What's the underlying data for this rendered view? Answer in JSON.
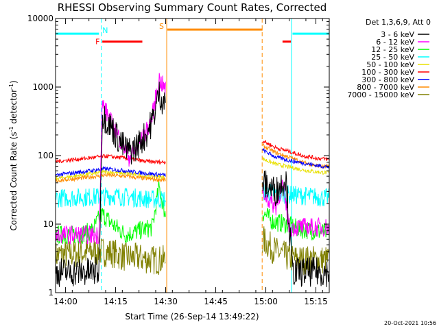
{
  "chart_data": {
    "type": "line",
    "title": "RHESSI Observing Summary Count Rates, Corrected",
    "xlabel": "Start Time (26-Sep-14 13:49:22)",
    "ylabel_main": "Corrected Count Rate (s",
    "ylabel_sup": "-1",
    "ylabel_tail": " detector",
    "ylabel_sup2": "-1",
    "ylabel_end": ")",
    "y_scale": "log",
    "ylim": [
      1,
      10000
    ],
    "xlim_minutes": [
      -3,
      79
    ],
    "x_ticks": [
      {
        "m": 0,
        "label": "14:00"
      },
      {
        "m": 15,
        "label": "14:15"
      },
      {
        "m": 30,
        "label": "14:30"
      },
      {
        "m": 45,
        "label": "14:45"
      },
      {
        "m": 60,
        "label": "15:00"
      },
      {
        "m": 75,
        "label": "15:15"
      }
    ],
    "y_ticks": [
      {
        "v": 1,
        "label": "1"
      },
      {
        "v": 10,
        "label": "10"
      },
      {
        "v": 100,
        "label": "100"
      },
      {
        "v": 1000,
        "label": "1000"
      },
      {
        "v": 10000,
        "label": "10000"
      }
    ],
    "legend_header": "Det 1,3,6,9, Att 0",
    "series": [
      {
        "name": "3 - 6 keV",
        "color": "#000000",
        "noisy": true,
        "seg1": [
          [
            -3,
            2
          ],
          [
            10,
            2
          ],
          [
            11,
            400
          ],
          [
            14,
            250
          ],
          [
            17,
            140
          ],
          [
            19,
            115
          ],
          [
            21,
            130
          ],
          [
            24,
            200
          ],
          [
            26,
            320
          ],
          [
            28,
            800
          ],
          [
            29,
            650
          ],
          [
            30,
            560
          ]
        ],
        "seg2": [
          [
            59,
            40
          ],
          [
            61,
            35
          ],
          [
            63,
            30
          ],
          [
            66,
            48
          ],
          [
            68,
            2
          ],
          [
            79,
            2
          ]
        ]
      },
      {
        "name": "6 - 12 keV",
        "color": "#ff00ff",
        "noisy": true,
        "seg1": [
          [
            -3,
            7
          ],
          [
            10,
            7
          ],
          [
            11,
            580
          ],
          [
            14,
            280
          ],
          [
            17,
            150
          ],
          [
            19,
            95
          ],
          [
            21,
            120
          ],
          [
            24,
            210
          ],
          [
            26,
            380
          ],
          [
            28,
            1300
          ],
          [
            30,
            900
          ]
        ],
        "seg2": [
          [
            59,
            30
          ],
          [
            61,
            22
          ],
          [
            63,
            18
          ],
          [
            65,
            38
          ],
          [
            67,
            9
          ],
          [
            79,
            9
          ]
        ]
      },
      {
        "name": "12 - 25 keV",
        "color": "#00ff00",
        "noisy": true,
        "seg1": [
          [
            -3,
            7
          ],
          [
            4,
            7
          ],
          [
            8,
            8
          ],
          [
            10,
            12
          ],
          [
            11,
            14
          ],
          [
            14,
            10
          ],
          [
            18,
            7
          ],
          [
            22,
            8
          ],
          [
            26,
            9
          ],
          [
            28,
            35
          ],
          [
            30,
            13
          ]
        ],
        "seg2": [
          [
            59,
            15
          ],
          [
            62,
            11
          ],
          [
            66,
            10
          ],
          [
            70,
            8.5
          ],
          [
            74,
            8
          ],
          [
            79,
            7.5
          ]
        ]
      },
      {
        "name": "25 - 50 keV",
        "color": "#00ffff",
        "noisy": true,
        "seg1": [
          [
            -3,
            24
          ],
          [
            10,
            25
          ],
          [
            14,
            26
          ],
          [
            18,
            25
          ],
          [
            22,
            24
          ],
          [
            26,
            23
          ],
          [
            30,
            23
          ]
        ],
        "seg2": [
          [
            59,
            30
          ],
          [
            63,
            28
          ],
          [
            67,
            27
          ],
          [
            71,
            26
          ],
          [
            75,
            25
          ],
          [
            79,
            24
          ]
        ]
      },
      {
        "name": "50 - 100 keV",
        "color": "#e8e000",
        "noisy": false,
        "seg1": [
          [
            -3,
            46
          ],
          [
            5,
            52
          ],
          [
            12,
            58
          ],
          [
            18,
            55
          ],
          [
            24,
            50
          ],
          [
            30,
            48
          ]
        ],
        "seg2": [
          [
            59,
            90
          ],
          [
            63,
            75
          ],
          [
            67,
            68
          ],
          [
            71,
            62
          ],
          [
            75,
            58
          ],
          [
            79,
            56
          ]
        ]
      },
      {
        "name": "100 - 300 keV",
        "color": "#ff0000",
        "noisy": false,
        "seg1": [
          [
            -3,
            82
          ],
          [
            5,
            90
          ],
          [
            12,
            98
          ],
          [
            18,
            92
          ],
          [
            24,
            82
          ],
          [
            30,
            80
          ]
        ],
        "seg2": [
          [
            59,
            165
          ],
          [
            63,
            130
          ],
          [
            67,
            115
          ],
          [
            71,
            100
          ],
          [
            75,
            92
          ],
          [
            79,
            88
          ]
        ]
      },
      {
        "name": "300 - 800 keV",
        "color": "#0000ff",
        "noisy": false,
        "seg1": [
          [
            -3,
            52
          ],
          [
            5,
            58
          ],
          [
            12,
            64
          ],
          [
            18,
            60
          ],
          [
            24,
            55
          ],
          [
            30,
            52
          ]
        ],
        "seg2": [
          [
            59,
            120
          ],
          [
            63,
            95
          ],
          [
            67,
            85
          ],
          [
            71,
            78
          ],
          [
            75,
            72
          ],
          [
            79,
            68
          ]
        ]
      },
      {
        "name": "800 - 7000 keV",
        "color": "#ff8c00",
        "noisy": false,
        "seg1": [
          [
            -3,
            43
          ],
          [
            5,
            47
          ],
          [
            12,
            52
          ],
          [
            18,
            50
          ],
          [
            24,
            46
          ],
          [
            30,
            44
          ]
        ],
        "seg2": [
          [
            59,
            140
          ],
          [
            63,
            110
          ],
          [
            67,
            95
          ],
          [
            71,
            80
          ],
          [
            75,
            72
          ],
          [
            79,
            68
          ]
        ]
      },
      {
        "name": "7000 - 15000 keV",
        "color": "#808000",
        "noisy": true,
        "seg1": [
          [
            -3,
            3.5
          ],
          [
            10,
            4
          ],
          [
            14,
            3.8
          ],
          [
            18,
            3.3
          ],
          [
            22,
            3.2
          ],
          [
            26,
            3
          ],
          [
            30,
            3
          ]
        ],
        "seg2": [
          [
            59,
            6
          ],
          [
            63,
            4
          ],
          [
            67,
            3.2
          ],
          [
            71,
            3
          ],
          [
            75,
            3
          ],
          [
            79,
            3
          ]
        ]
      }
    ],
    "state_bars": [
      {
        "label": "N",
        "color": "#00ffff",
        "from": -3,
        "to": 10,
        "y": 6000
      },
      {
        "label": "",
        "color": "#00ffff",
        "from": 68,
        "to": 79,
        "y": 6000
      },
      {
        "label": "F",
        "color": "#ff0000",
        "from": 11,
        "to": 23,
        "y": 4600
      },
      {
        "label": "",
        "color": "#ff0000",
        "from": 65,
        "to": 67.5,
        "y": 4600
      },
      {
        "label": "S",
        "color": "#ff8c00",
        "from": 30.5,
        "to": 59,
        "y": 6900
      }
    ],
    "vlines": [
      {
        "m": -3,
        "color": "#00ffff",
        "style": "solid"
      },
      {
        "m": 10.7,
        "color": "#00ffff",
        "style": "dashed"
      },
      {
        "m": 30.3,
        "color": "#ff8c00",
        "style": "solid"
      },
      {
        "m": 58.9,
        "color": "#ff8c00",
        "style": "dashed"
      },
      {
        "m": 67.7,
        "color": "#00ffff",
        "style": "solid"
      },
      {
        "m": 79,
        "color": "#00ffff",
        "style": "dashed"
      }
    ],
    "stamp": "20-Oct-2021 10:56"
  }
}
